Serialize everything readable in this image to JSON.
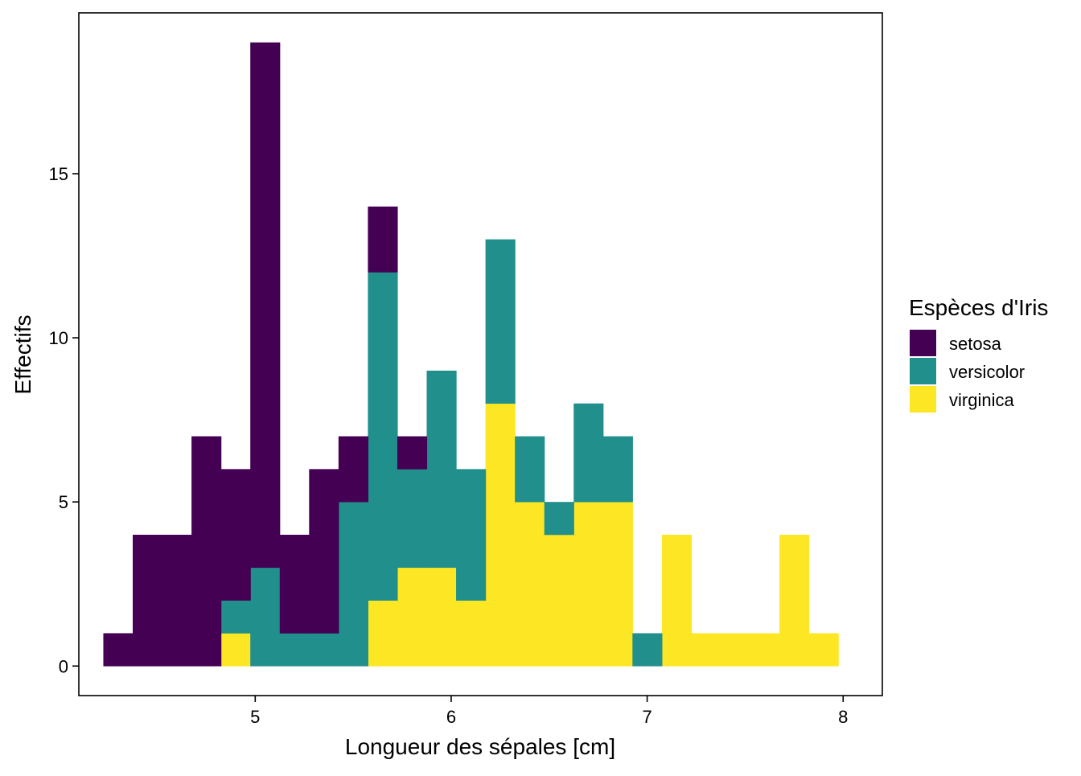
{
  "chart_data": {
    "type": "bar",
    "stacked": true,
    "xlabel": "Longueur des sépales  [cm]",
    "ylabel": "Effectifs",
    "legend": {
      "title": "Espèces d'Iris",
      "placement": "right"
    },
    "xlim": [
      4.1,
      8.2
    ],
    "ylim": [
      -0.9,
      19.9
    ],
    "bin_width": 0.15,
    "bin_starts": [
      4.225,
      4.375,
      4.525,
      4.675,
      4.825,
      4.975,
      5.125,
      5.275,
      5.425,
      5.575,
      5.725,
      5.875,
      6.025,
      6.175,
      6.325,
      6.475,
      6.625,
      6.775,
      6.925,
      7.075,
      7.225,
      7.375,
      7.525,
      7.675,
      7.825
    ],
    "x_ticks": [
      5,
      6,
      7,
      8
    ],
    "y_ticks": [
      0,
      5,
      10,
      15
    ],
    "grid": false,
    "series": [
      {
        "name": "virginica",
        "color": "#FDE725",
        "values": [
          0,
          0,
          0,
          0,
          1,
          0,
          0,
          0,
          0,
          2,
          3,
          3,
          2,
          8,
          5,
          4,
          5,
          5,
          0,
          4,
          1,
          1,
          1,
          4,
          1
        ]
      },
      {
        "name": "versicolor",
        "color": "#21908C",
        "values": [
          0,
          0,
          0,
          0,
          1,
          3,
          1,
          1,
          5,
          10,
          3,
          6,
          4,
          5,
          2,
          1,
          3,
          2,
          1,
          0,
          0,
          0,
          0,
          0,
          0
        ]
      },
      {
        "name": "setosa",
        "color": "#440154",
        "values": [
          1,
          4,
          4,
          7,
          4,
          16,
          3,
          5,
          2,
          2,
          1,
          0,
          0,
          0,
          0,
          0,
          0,
          0,
          0,
          0,
          0,
          0,
          0,
          0,
          0
        ]
      }
    ],
    "legend_order": [
      "setosa",
      "versicolor",
      "virginica"
    ]
  }
}
